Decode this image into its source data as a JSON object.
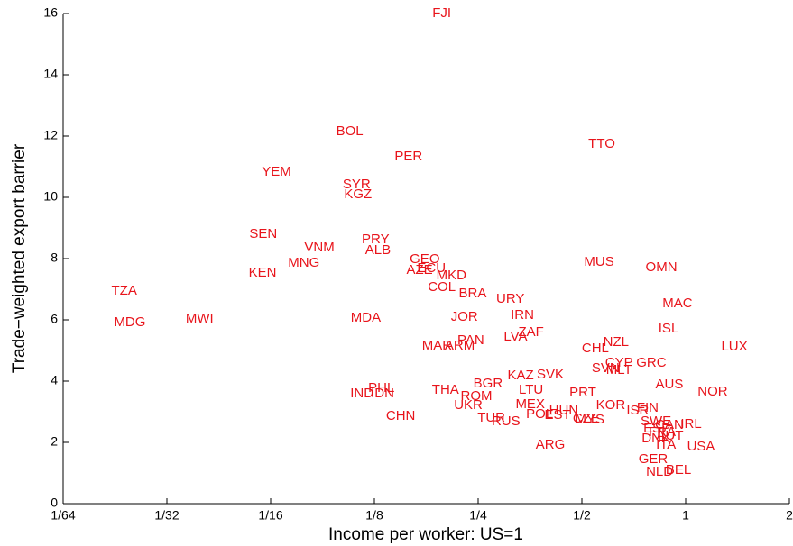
{
  "chart_data": {
    "type": "scatter",
    "xlabel": "Income per worker: US=1",
    "ylabel": "Trade−weighted export barrier",
    "xlog": true,
    "xlim": [
      0.015625,
      2
    ],
    "xticks": [
      {
        "value": 0.015625,
        "label": "1/64"
      },
      {
        "value": 0.03125,
        "label": "1/32"
      },
      {
        "value": 0.0625,
        "label": "1/16"
      },
      {
        "value": 0.125,
        "label": "1/8"
      },
      {
        "value": 0.25,
        "label": "1/4"
      },
      {
        "value": 0.5,
        "label": "1/2"
      },
      1,
      2
    ],
    "ylim": [
      0,
      16
    ],
    "yticks": [
      0,
      2,
      4,
      6,
      8,
      10,
      12,
      14,
      16
    ],
    "color": "#e8141b",
    "labels": [
      "FJI",
      "BOL",
      "TTO",
      "PER",
      "YEM",
      "SYR",
      "KGZ",
      "SEN",
      "PRY",
      "VNM",
      "ALB",
      "GEO",
      "MUS",
      "OMN",
      "MNG",
      "AZE",
      "ECU",
      "KEN",
      "MKD",
      "COL",
      "TZA",
      "BRA",
      "URY",
      "MAC",
      "IRN",
      "MDA",
      "JOR",
      "MDG",
      "MWI",
      "ISL",
      "ZAF",
      "LVA",
      "NZL",
      "PAN",
      "LUX",
      "MAR",
      "ARM",
      "CHL",
      "CYP",
      "GRC",
      "SVN",
      "MLT",
      "KAZ",
      "SVK",
      "BGR",
      "AUS",
      "PHL",
      "THA",
      "LTU",
      "NOR",
      "IND",
      "IDN",
      "PRT",
      "ROM",
      "UKR",
      "KOR",
      "MEX",
      "FIN",
      "ISR",
      "HUN",
      "POL",
      "EST",
      "CZE",
      "MYS",
      "CHN",
      "TUR",
      "RUS",
      "SWE",
      "ESP",
      "CAN",
      "IRL",
      "FRA",
      "AUT",
      "DNK",
      "ITA",
      "USA",
      "ARG",
      "GER",
      "NLD",
      "BEL"
    ],
    "x": [
      0.196,
      0.106,
      0.571,
      0.157,
      0.065,
      0.111,
      0.112,
      0.0595,
      0.126,
      0.0866,
      0.128,
      0.175,
      0.561,
      0.85,
      0.078,
      0.169,
      0.183,
      0.0592,
      0.209,
      0.196,
      0.0235,
      0.241,
      0.31,
      0.947,
      0.336,
      0.118,
      0.228,
      0.0244,
      0.0389,
      0.892,
      0.356,
      0.321,
      0.628,
      0.238,
      1.385,
      0.19,
      0.221,
      0.547,
      0.641,
      0.795,
      0.586,
      0.641,
      0.332,
      0.405,
      0.267,
      0.897,
      0.131,
      0.201,
      0.356,
      1.198,
      0.115,
      0.132,
      0.503,
      0.247,
      0.234,
      0.606,
      0.354,
      0.776,
      0.726,
      0.443,
      0.377,
      0.425,
      0.515,
      0.527,
      0.149,
      0.273,
      0.301,
      0.82,
      0.825,
      0.897,
      1.037,
      0.855,
      0.9,
      0.82,
      0.877,
      1.108,
      0.405,
      0.805,
      0.84,
      0.953
    ],
    "values": [
      16.0,
      12.15,
      11.74,
      11.32,
      10.82,
      10.41,
      10.09,
      8.79,
      8.62,
      8.35,
      8.26,
      7.97,
      7.88,
      7.71,
      7.85,
      7.62,
      7.68,
      7.53,
      7.44,
      7.06,
      6.94,
      6.85,
      6.68,
      6.53,
      6.15,
      6.06,
      6.09,
      5.91,
      6.03,
      5.71,
      5.59,
      5.44,
      5.26,
      5.32,
      5.12,
      5.15,
      5.15,
      5.06,
      4.59,
      4.59,
      4.41,
      4.35,
      4.18,
      4.21,
      3.91,
      3.88,
      3.76,
      3.71,
      3.71,
      3.65,
      3.59,
      3.59,
      3.62,
      3.5,
      3.21,
      3.21,
      3.24,
      3.12,
      3.03,
      3.03,
      2.91,
      2.88,
      2.76,
      2.74,
      2.85,
      2.79,
      2.68,
      2.68,
      2.44,
      2.56,
      2.59,
      2.32,
      2.21,
      2.12,
      1.91,
      1.85,
      1.91,
      1.44,
      1.03,
      1.09
    ]
  }
}
